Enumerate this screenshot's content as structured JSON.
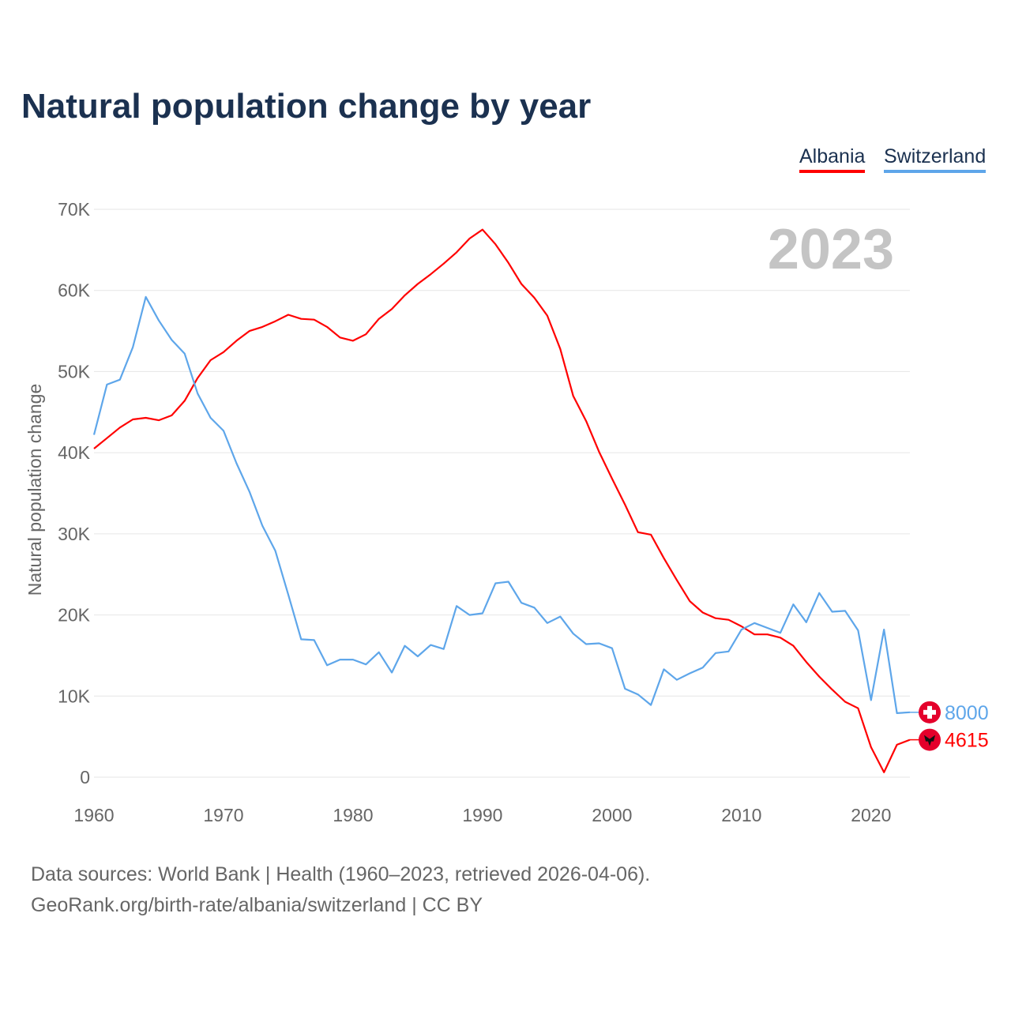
{
  "title": "Natural population change by year",
  "footer": {
    "line1": "Data sources: World Bank | Health (1960–2023, retrieved 2026-04-06).",
    "line2": "GeoRank.org/birth-rate/albania/switzerland | CC BY"
  },
  "chart_data": {
    "type": "line",
    "title": "Natural population change by year",
    "xlabel": "",
    "ylabel": "Natural population change",
    "year_label": "2023",
    "xlim": [
      1960,
      2023
    ],
    "ylim": [
      0,
      70000
    ],
    "x_ticks": [
      "1960",
      "1970",
      "1980",
      "1990",
      "2000",
      "2010",
      "2020"
    ],
    "y_ticks": [
      "0",
      "10K",
      "20K",
      "30K",
      "40K",
      "50K",
      "60K",
      "70K"
    ],
    "grid": true,
    "legend": "top-right",
    "x_start": 1960,
    "series": [
      {
        "name": "Albania",
        "color": "#ff0000",
        "end_label": "4615",
        "flag_icon": "albania-flag-icon",
        "values": [
          40500,
          41800,
          43100,
          44100,
          44300,
          44000,
          44600,
          46400,
          49200,
          51400,
          52400,
          53800,
          55000,
          55500,
          56200,
          57000,
          56500,
          56400,
          55500,
          54200,
          53800,
          54600,
          56500,
          57700,
          59400,
          60800,
          62000,
          63300,
          64700,
          66400,
          67500,
          65700,
          63400,
          60800,
          59100,
          56900,
          52800,
          47000,
          43900,
          40100,
          36800,
          33600,
          30200,
          29900,
          27000,
          24300,
          21700,
          20300,
          19600,
          19400,
          18600,
          17600,
          17600,
          17200,
          16200,
          14200,
          12400,
          10800,
          9300,
          8500,
          3700,
          600,
          4000,
          4615
        ]
      },
      {
        "name": "Switzerland",
        "color": "#5ea6ea",
        "end_label": "8000",
        "flag_icon": "switzerland-flag-icon",
        "values": [
          42200,
          48400,
          49000,
          53000,
          59200,
          56300,
          53900,
          52200,
          47300,
          44300,
          42700,
          38700,
          35200,
          31000,
          27900,
          22500,
          17000,
          16900,
          13800,
          14500,
          14500,
          13900,
          15400,
          12900,
          16200,
          14900,
          16300,
          15800,
          21100,
          20000,
          20200,
          23900,
          24100,
          21500,
          20900,
          19000,
          19800,
          17700,
          16400,
          16500,
          15900,
          10900,
          10200,
          8900,
          13300,
          12000,
          12800,
          13500,
          15300,
          15500,
          18200,
          19000,
          18400,
          17800,
          21300,
          19100,
          22700,
          20400,
          20500,
          18100,
          9500,
          18200,
          7900,
          8000
        ]
      }
    ]
  }
}
